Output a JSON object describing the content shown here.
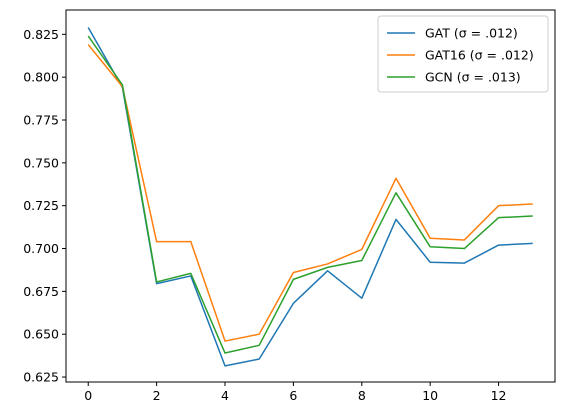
{
  "chart_data": {
    "type": "line",
    "title": "",
    "xlabel": "",
    "ylabel": "",
    "x": [
      0,
      1,
      2,
      3,
      4,
      5,
      6,
      7,
      8,
      9,
      10,
      11,
      12,
      13
    ],
    "xlim": [
      -0.65,
      13.65
    ],
    "ylim": [
      0.6221,
      0.8392
    ],
    "xticks": [
      0,
      2,
      4,
      6,
      8,
      10,
      12
    ],
    "yticks": [
      0.625,
      0.65,
      0.675,
      0.7,
      0.725,
      0.75,
      0.775,
      0.8,
      0.825
    ],
    "ytick_labels": [
      "0.625",
      "0.650",
      "0.675",
      "0.700",
      "0.725",
      "0.750",
      "0.775",
      "0.800",
      "0.825"
    ],
    "grid": false,
    "legend_position": "top-right",
    "series": [
      {
        "name": "GAT (σ = .012)",
        "color": "#1f77b4",
        "values": [
          0.829,
          0.794,
          0.6795,
          0.684,
          0.6315,
          0.6355,
          0.668,
          0.687,
          0.671,
          0.717,
          0.692,
          0.6915,
          0.702,
          0.703
        ]
      },
      {
        "name": "GAT16 (σ = .012)",
        "color": "#ff7f0e",
        "values": [
          0.819,
          0.7945,
          0.704,
          0.704,
          0.646,
          0.65,
          0.686,
          0.691,
          0.6995,
          0.741,
          0.706,
          0.705,
          0.725,
          0.726
        ]
      },
      {
        "name": "GCN (σ = .013)",
        "color": "#2ca02c",
        "values": [
          0.824,
          0.7955,
          0.6805,
          0.6855,
          0.639,
          0.6435,
          0.682,
          0.689,
          0.693,
          0.7325,
          0.701,
          0.7,
          0.718,
          0.719
        ]
      }
    ]
  }
}
